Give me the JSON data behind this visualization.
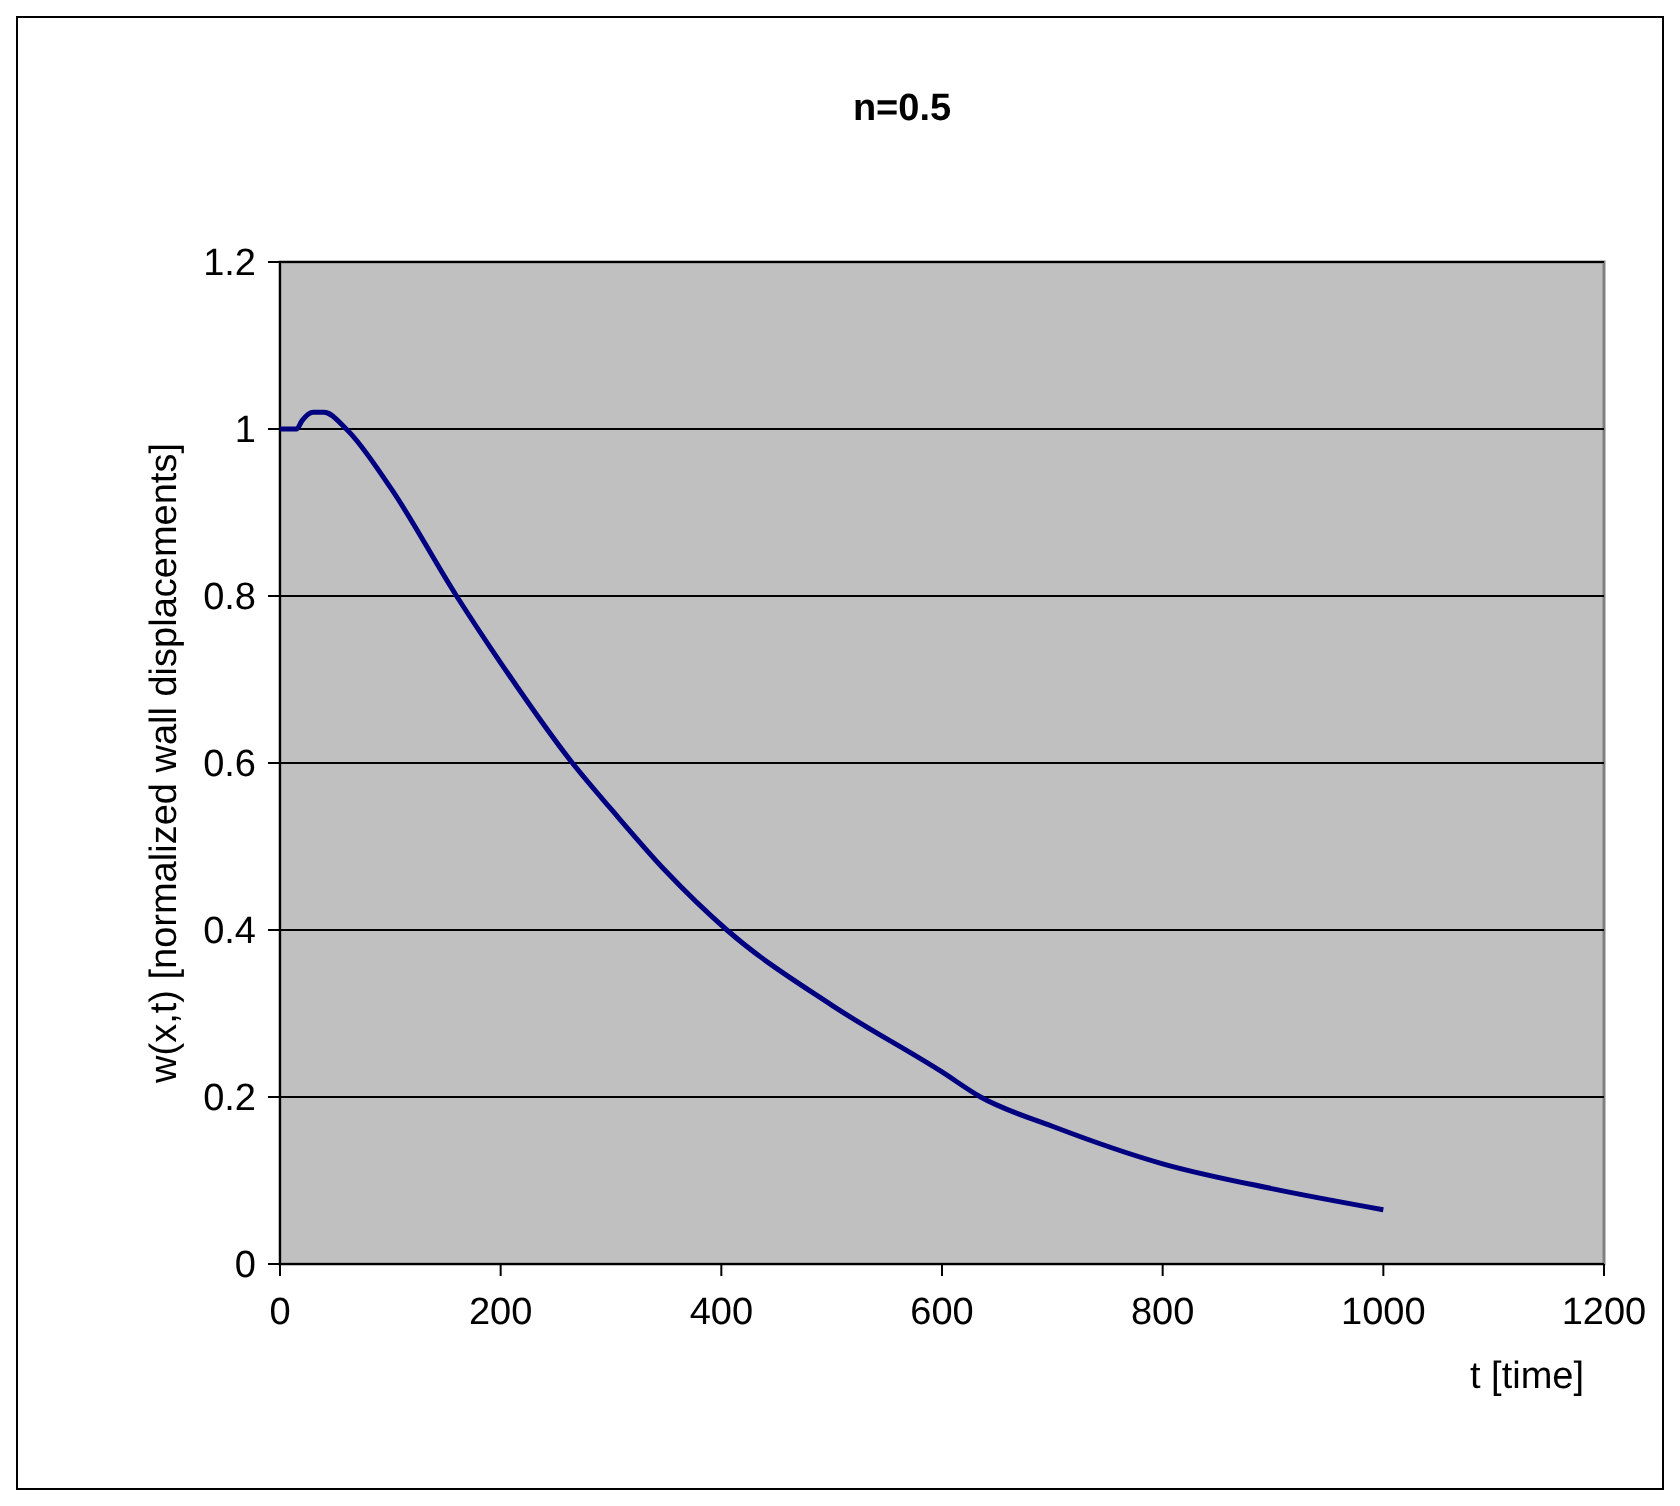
{
  "chart_data": {
    "type": "line",
    "title": "n=0.5",
    "xlabel": "t [time]",
    "ylabel": "w(x,t)   [normalized wall displacements]",
    "x": [
      0,
      15,
      20,
      30,
      40,
      60,
      100,
      160,
      200,
      265,
      300,
      350,
      405,
      500,
      600,
      635,
      700,
      800,
      900,
      1000
    ],
    "series": [
      {
        "color": "#000080",
        "values": [
          1,
          1,
          1.01,
          1.02,
          1.02,
          1.0,
          0.93,
          0.8,
          0.72,
          0.6,
          0.545,
          0.47,
          0.4,
          0.31,
          0.23,
          0.2,
          0.165,
          0.12,
          0.09,
          0.065
        ]
      }
    ],
    "xlim": [
      0,
      1200
    ],
    "xticks": [
      0,
      200,
      400,
      600,
      800,
      1000,
      1200
    ],
    "ylim": [
      0,
      1.2
    ],
    "yticks": [
      0,
      0.2,
      0.4,
      0.6,
      0.8,
      1,
      1.2
    ],
    "grid": "y",
    "legend": false,
    "marker": "none",
    "line_style": "solid"
  }
}
